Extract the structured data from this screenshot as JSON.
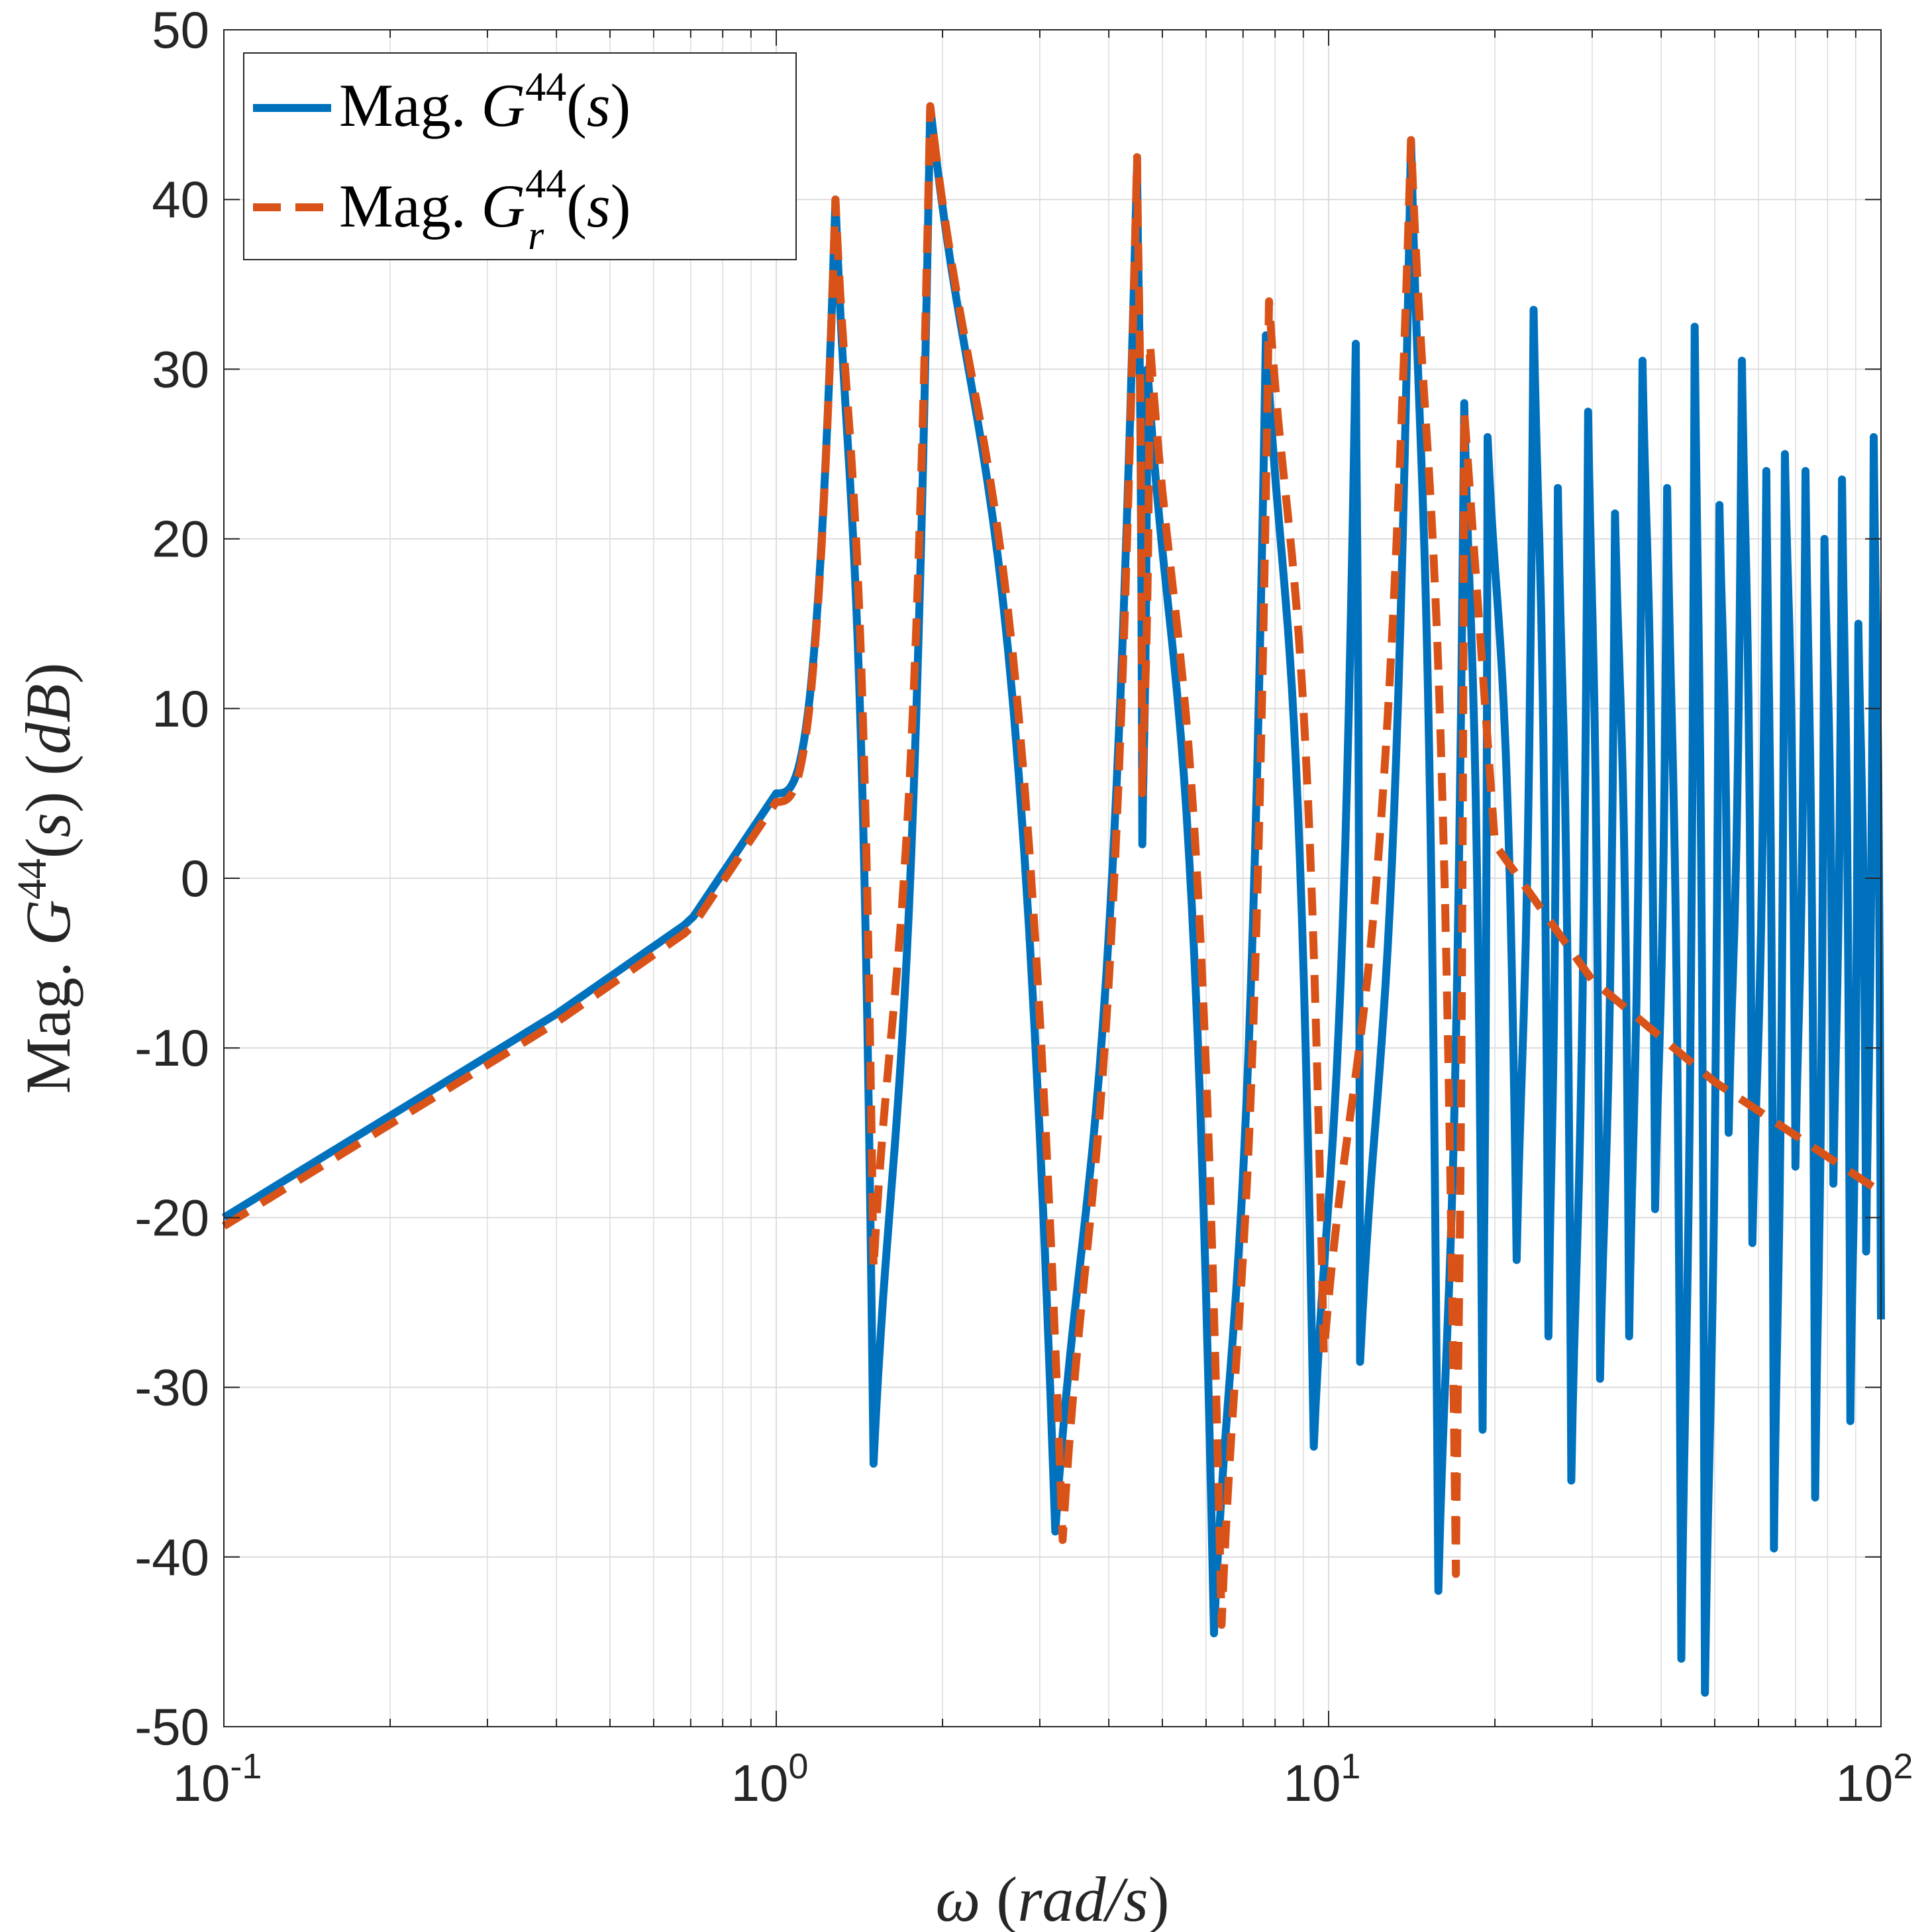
{
  "chart_data": {
    "type": "line",
    "x_scale": "log",
    "xlim": [
      0.1,
      100
    ],
    "ylim": [
      -50,
      50
    ],
    "grid": true,
    "legend_location": "top-left",
    "xlabel": "ω (rad/s)",
    "ylabel": "Mag. G^44(s) (dB)",
    "x_ticks": [
      {
        "base": "10",
        "exp": "-1",
        "value": 0.1
      },
      {
        "base": "10",
        "exp": "0",
        "value": 1
      },
      {
        "base": "10",
        "exp": "1",
        "value": 10
      },
      {
        "base": "10",
        "exp": "2",
        "value": 100
      }
    ],
    "y_ticks": [
      "50",
      "40",
      "30",
      "20",
      "10",
      "0",
      "-10",
      "-20",
      "-30",
      "-40",
      "-50"
    ],
    "series": [
      {
        "name": "Mag. G^44(s)",
        "color": "#0072BD",
        "style": "solid",
        "baseline": {
          "x": [
            0.1,
            0.2,
            0.4,
            0.7,
            1.0
          ],
          "y": [
            -20,
            -14,
            -8,
            -2.5,
            5
          ]
        },
        "resonances": [
          {
            "peak": 1.28,
            "peak_db": 40,
            "anti": 1.5,
            "anti_db": -34.5
          },
          {
            "peak": 1.9,
            "peak_db": 45.5,
            "anti": 3.2,
            "anti_db": -38.5
          },
          {
            "peak": 4.5,
            "peak_db": 42,
            "anti": 4.6,
            "anti_db": 2
          },
          {
            "peak": 4.7,
            "peak_db": 30,
            "anti": 6.2,
            "anti_db": -44.5
          },
          {
            "peak": 7.7,
            "peak_db": 32,
            "anti": 9.4,
            "anti_db": -33.5
          },
          {
            "peak": 11.2,
            "peak_db": 31.5,
            "anti": 11.4,
            "anti_db": -28.5
          },
          {
            "peak": 14.1,
            "peak_db": 43.5,
            "anti": 15.8,
            "anti_db": -42
          },
          {
            "peak": 17.6,
            "peak_db": 28,
            "anti": 19.0,
            "anti_db": -32.5
          },
          {
            "peak": 19.4,
            "peak_db": 26,
            "anti": 21.9,
            "anti_db": -22.5
          },
          {
            "peak": 23.5,
            "peak_db": 33.5,
            "anti": 25.0,
            "anti_db": -27
          },
          {
            "peak": 26.0,
            "peak_db": 23,
            "anti": 27.5,
            "anti_db": -35.5
          },
          {
            "peak": 29.5,
            "peak_db": 27.5,
            "anti": 31.0,
            "anti_db": -29.5
          },
          {
            "peak": 33.0,
            "peak_db": 21.5,
            "anti": 35.0,
            "anti_db": -27
          },
          {
            "peak": 37.0,
            "peak_db": 30.5,
            "anti": 39.0,
            "anti_db": -19.5
          },
          {
            "peak": 41.0,
            "peak_db": 23,
            "anti": 43.5,
            "anti_db": -46
          },
          {
            "peak": 46.0,
            "peak_db": 32.5,
            "anti": 48.0,
            "anti_db": -48
          },
          {
            "peak": 51.0,
            "peak_db": 22,
            "anti": 53.0,
            "anti_db": -15
          },
          {
            "peak": 56.0,
            "peak_db": 30.5,
            "anti": 58.5,
            "anti_db": -21.5
          },
          {
            "peak": 62.0,
            "peak_db": 24,
            "anti": 64.0,
            "anti_db": -39.5
          },
          {
            "peak": 67.0,
            "peak_db": 25,
            "anti": 70.0,
            "anti_db": -17
          },
          {
            "peak": 73.0,
            "peak_db": 24,
            "anti": 76.0,
            "anti_db": -36.5
          },
          {
            "peak": 79.0,
            "peak_db": 20,
            "anti": 82.0,
            "anti_db": -18
          },
          {
            "peak": 85.0,
            "peak_db": 23.5,
            "anti": 88.0,
            "anti_db": -32
          },
          {
            "peak": 91.0,
            "peak_db": 15,
            "anti": 94.0,
            "anti_db": -22
          },
          {
            "peak": 97.0,
            "peak_db": 26,
            "anti": 100.0,
            "anti_db": -26
          }
        ]
      },
      {
        "name": "Mag. G_r^44(s)",
        "color": "#D95319",
        "style": "dashed",
        "baseline": {
          "x": [
            0.1,
            0.2,
            0.4,
            0.7,
            1.0
          ],
          "y": [
            -20.5,
            -14.5,
            -8.5,
            -3,
            4.5
          ]
        },
        "resonances": [
          {
            "peak": 1.28,
            "peak_db": 40,
            "anti": 1.5,
            "anti_db": -23
          },
          {
            "peak": 1.9,
            "peak_db": 45.5,
            "anti": 3.3,
            "anti_db": -39
          },
          {
            "peak": 4.5,
            "peak_db": 42.5,
            "anti": 4.6,
            "anti_db": 5
          },
          {
            "peak": 4.75,
            "peak_db": 31.5,
            "anti": 6.4,
            "anti_db": -44
          },
          {
            "peak": 7.8,
            "peak_db": 34,
            "anti": 9.8,
            "anti_db": -28
          },
          {
            "peak": 14.1,
            "peak_db": 43.5,
            "anti": 17.0,
            "anti_db": -41
          },
          {
            "peak": 17.6,
            "peak_db": 27.5,
            "anti": 100.0,
            "anti_db": -18.5
          }
        ],
        "tail": {
          "x": [
            17.6,
            20,
            30,
            50,
            100
          ],
          "y": [
            27.5,
            2,
            -6,
            -12,
            -18.5
          ]
        }
      }
    ]
  }
}
